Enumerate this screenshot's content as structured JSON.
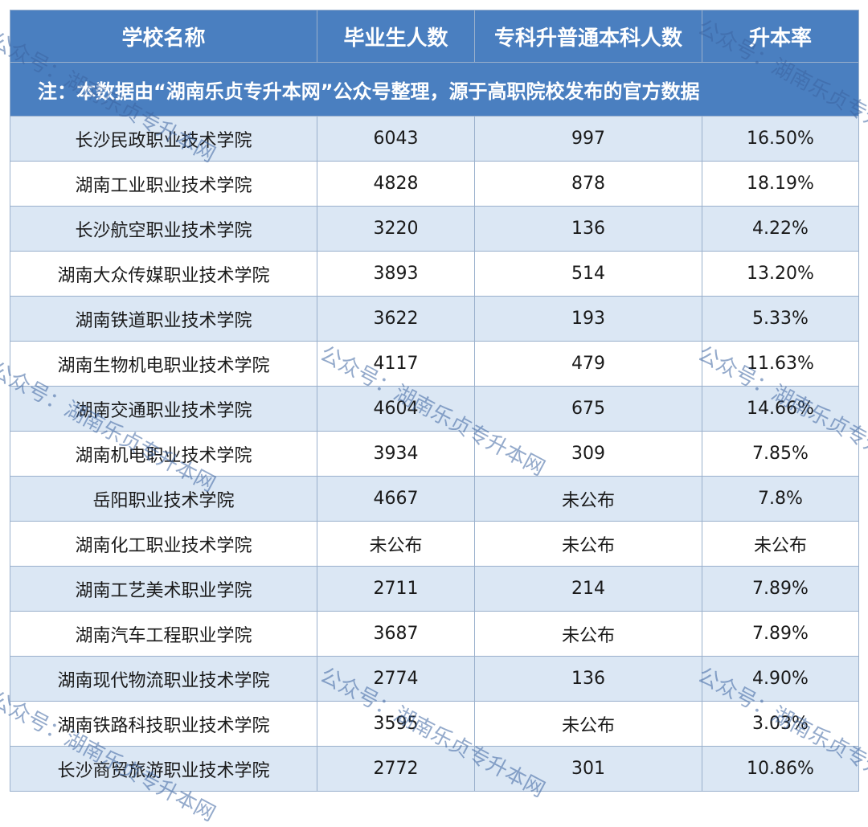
{
  "table": {
    "headers": [
      "学校名称",
      "毕业生人数",
      "专科升普通本科人数",
      "升本率"
    ],
    "note": "注：本数据由“湖南乐贞专升本网”公众号整理，源于高职院校发布的官方数据",
    "rows": [
      {
        "school": "长沙民政职业技术学院",
        "graduates": "6043",
        "upgrades": "997",
        "rate": "16.50%"
      },
      {
        "school": "湖南工业职业技术学院",
        "graduates": "4828",
        "upgrades": "878",
        "rate": "18.19%"
      },
      {
        "school": "长沙航空职业技术学院",
        "graduates": "3220",
        "upgrades": "136",
        "rate": "4.22%"
      },
      {
        "school": "湖南大众传媒职业技术学院",
        "graduates": "3893",
        "upgrades": "514",
        "rate": "13.20%"
      },
      {
        "school": "湖南铁道职业技术学院",
        "graduates": "3622",
        "upgrades": "193",
        "rate": "5.33%"
      },
      {
        "school": "湖南生物机电职业技术学院",
        "graduates": "4117",
        "upgrades": "479",
        "rate": "11.63%"
      },
      {
        "school": "湖南交通职业技术学院",
        "graduates": "4604",
        "upgrades": "675",
        "rate": "14.66%"
      },
      {
        "school": "湖南机电职业技术学院",
        "graduates": "3934",
        "upgrades": "309",
        "rate": "7.85%"
      },
      {
        "school": "岳阳职业技术学院",
        "graduates": "4667",
        "upgrades": "未公布",
        "rate": "7.8%"
      },
      {
        "school": "湖南化工职业技术学院",
        "graduates": "未公布",
        "upgrades": "未公布",
        "rate": "未公布"
      },
      {
        "school": "湖南工艺美术职业学院",
        "graduates": "2711",
        "upgrades": "214",
        "rate": "7.89%"
      },
      {
        "school": "湖南汽车工程职业学院",
        "graduates": "3687",
        "upgrades": "未公布",
        "rate": "7.89%"
      },
      {
        "school": "湖南现代物流职业技术学院",
        "graduates": "2774",
        "upgrades": "136",
        "rate": "4.90%"
      },
      {
        "school": "湖南铁路科技职业技术学院",
        "graduates": "3595",
        "upgrades": "未公布",
        "rate": "3.03%"
      },
      {
        "school": "长沙商贸旅游职业技术学院",
        "graduates": "2772",
        "upgrades": "301",
        "rate": "10.86%"
      }
    ]
  },
  "watermark": "公众号：湖南乐贞专升本网"
}
